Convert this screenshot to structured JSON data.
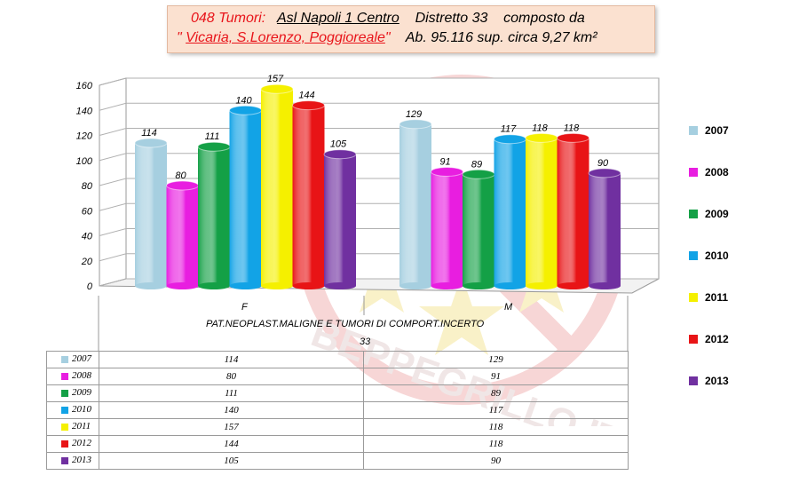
{
  "title": {
    "line1_prefix": "048 Tumori:",
    "line1_asl": "Asl Napoli 1 Centro",
    "line1_distretto": "Distretto  33",
    "line1_suffix": "composto da",
    "line2_quote_open": "\"",
    "line2_areas": "Vicaria, S.Lorenzo, Poggioreale",
    "line2_quote_close": "\"",
    "line2_rest": "Ab. 95.116 sup. circa 9,27 km²"
  },
  "watermark_text": "BEPPEGRILLO.IT",
  "colors": {
    "2007": "#a6cfe0",
    "2008": "#e81ee0",
    "2009": "#14a046",
    "2010": "#12a3e6",
    "2011": "#f5f000",
    "2012": "#e81416",
    "2013": "#7030a0"
  },
  "chart_data": {
    "type": "bar",
    "categories": [
      "F",
      "M"
    ],
    "series": [
      {
        "name": "2007",
        "values": [
          114,
          129
        ]
      },
      {
        "name": "2008",
        "values": [
          80,
          91
        ]
      },
      {
        "name": "2009",
        "values": [
          111,
          89
        ]
      },
      {
        "name": "2010",
        "values": [
          140,
          117
        ]
      },
      {
        "name": "2011",
        "values": [
          157,
          118
        ]
      },
      {
        "name": "2012",
        "values": [
          144,
          118
        ]
      },
      {
        "name": "2013",
        "values": [
          105,
          90
        ]
      }
    ],
    "yticks": [
      "0",
      "20",
      "40",
      "60",
      "80",
      "100",
      "120",
      "140",
      "160"
    ],
    "ylim": [
      0,
      160
    ],
    "xlabel": "PAT.NEOPLAST.MALIGNE E TUMORI DI COMPORT.INCERTO",
    "sublabel": "33",
    "legend_position": "right",
    "grid": true
  },
  "table": {
    "rows": [
      {
        "year": "2007",
        "f": "114",
        "m": "129"
      },
      {
        "year": "2008",
        "f": "80",
        "m": "91"
      },
      {
        "year": "2009",
        "f": "111",
        "m": "89"
      },
      {
        "year": "2010",
        "f": "140",
        "m": "117"
      },
      {
        "year": "2011",
        "f": "157",
        "m": "118"
      },
      {
        "year": "2012",
        "f": "144",
        "m": "118"
      },
      {
        "year": "2013",
        "f": "105",
        "m": "90"
      }
    ]
  }
}
